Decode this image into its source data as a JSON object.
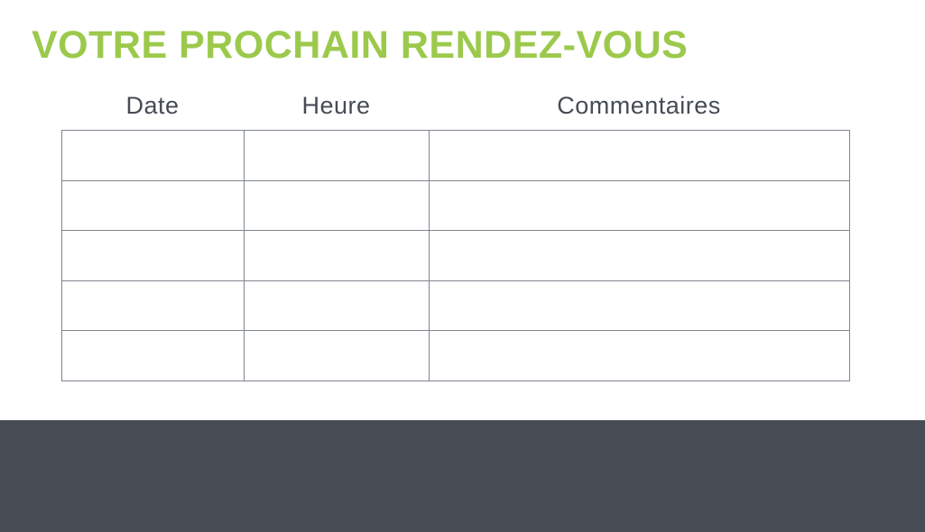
{
  "title": "VOTRE PROCHAIN RENDEZ-VOUS",
  "table": {
    "columns": [
      {
        "label": "Date"
      },
      {
        "label": "Heure"
      },
      {
        "label": "Commentaires"
      }
    ],
    "rows": [
      [
        "",
        "",
        ""
      ],
      [
        "",
        "",
        ""
      ],
      [
        "",
        "",
        ""
      ],
      [
        "",
        "",
        ""
      ],
      [
        "",
        "",
        ""
      ]
    ]
  },
  "colors": {
    "accent_green": "#9cc94c",
    "footer_dark": "#474c55",
    "table_border_gray": "#7f868e",
    "header_text": "#454c55"
  }
}
